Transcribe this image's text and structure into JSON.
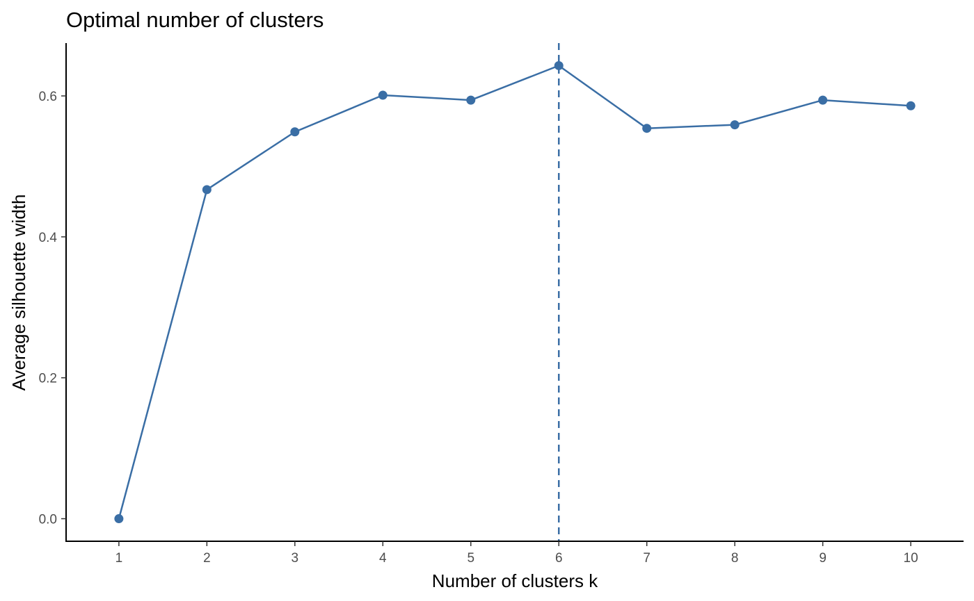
{
  "chart_data": {
    "type": "line",
    "title": "Optimal number of clusters",
    "xlabel": "Number of clusters k",
    "ylabel": "Average silhouette width",
    "x": [
      "1",
      "2",
      "3",
      "4",
      "5",
      "6",
      "7",
      "8",
      "9",
      "10"
    ],
    "series": [
      {
        "values": [
          0.0,
          0.467,
          0.549,
          0.601,
          0.594,
          0.643,
          0.554,
          0.559,
          0.594,
          0.586
        ]
      }
    ],
    "optimal_k": "6",
    "yticks": [
      "0.0",
      "0.2",
      "0.4",
      "0.6"
    ],
    "ylim": [
      -0.032,
      0.675
    ],
    "grid": false,
    "line_color": "#3a6ea5",
    "reference_line_style": "dashed"
  }
}
